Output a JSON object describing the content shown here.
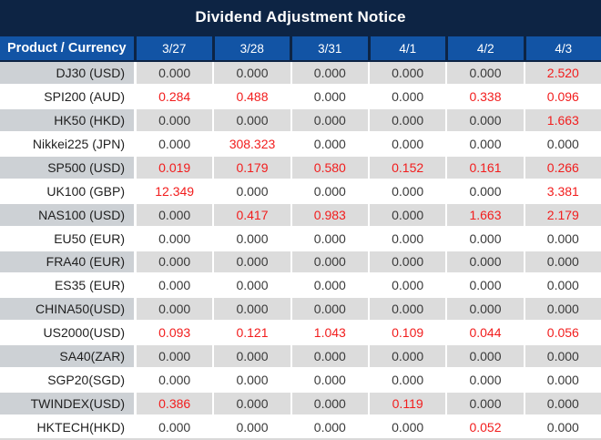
{
  "title": "Dividend Adjustment Notice",
  "colors": {
    "title_bar_bg": "#0d2444",
    "header_bg": "#1254a5",
    "header_text": "#ffffff",
    "row_label_gray": "#cdd1d5",
    "row_value_gray": "#dcdcdc",
    "row_white_bg": "#ffffff",
    "value_text": "#3a3a3a",
    "highlight_red": "#f21d1d"
  },
  "table": {
    "header": [
      "Product / Currency",
      "3/27",
      "3/28",
      "3/31",
      "4/1",
      "4/2",
      "4/3"
    ],
    "rows": [
      {
        "product": "DJ30 (USD)",
        "values": [
          "0.000",
          "0.000",
          "0.000",
          "0.000",
          "0.000",
          "2.520"
        ],
        "red": [
          false,
          false,
          false,
          false,
          false,
          true
        ]
      },
      {
        "product": "SPI200 (AUD)",
        "values": [
          "0.284",
          "0.488",
          "0.000",
          "0.000",
          "0.338",
          "0.096"
        ],
        "red": [
          true,
          true,
          false,
          false,
          true,
          true
        ]
      },
      {
        "product": "HK50 (HKD)",
        "values": [
          "0.000",
          "0.000",
          "0.000",
          "0.000",
          "0.000",
          "1.663"
        ],
        "red": [
          false,
          false,
          false,
          false,
          false,
          true
        ]
      },
      {
        "product": "Nikkei225 (JPN)",
        "values": [
          "0.000",
          "308.323",
          "0.000",
          "0.000",
          "0.000",
          "0.000"
        ],
        "red": [
          false,
          true,
          false,
          false,
          false,
          false
        ]
      },
      {
        "product": "SP500 (USD)",
        "values": [
          "0.019",
          "0.179",
          "0.580",
          "0.152",
          "0.161",
          "0.266"
        ],
        "red": [
          true,
          true,
          true,
          true,
          true,
          true
        ]
      },
      {
        "product": "UK100 (GBP)",
        "values": [
          "12.349",
          "0.000",
          "0.000",
          "0.000",
          "0.000",
          "3.381"
        ],
        "red": [
          true,
          false,
          false,
          false,
          false,
          true
        ]
      },
      {
        "product": "NAS100 (USD)",
        "values": [
          "0.000",
          "0.417",
          "0.983",
          "0.000",
          "1.663",
          "2.179"
        ],
        "red": [
          false,
          true,
          true,
          false,
          true,
          true
        ]
      },
      {
        "product": "EU50 (EUR)",
        "values": [
          "0.000",
          "0.000",
          "0.000",
          "0.000",
          "0.000",
          "0.000"
        ],
        "red": [
          false,
          false,
          false,
          false,
          false,
          false
        ]
      },
      {
        "product": "FRA40 (EUR)",
        "values": [
          "0.000",
          "0.000",
          "0.000",
          "0.000",
          "0.000",
          "0.000"
        ],
        "red": [
          false,
          false,
          false,
          false,
          false,
          false
        ]
      },
      {
        "product": "ES35 (EUR)",
        "values": [
          "0.000",
          "0.000",
          "0.000",
          "0.000",
          "0.000",
          "0.000"
        ],
        "red": [
          false,
          false,
          false,
          false,
          false,
          false
        ]
      },
      {
        "product": "CHINA50(USD)",
        "values": [
          "0.000",
          "0.000",
          "0.000",
          "0.000",
          "0.000",
          "0.000"
        ],
        "red": [
          false,
          false,
          false,
          false,
          false,
          false
        ]
      },
      {
        "product": "US2000(USD)",
        "values": [
          "0.093",
          "0.121",
          "1.043",
          "0.109",
          "0.044",
          "0.056"
        ],
        "red": [
          true,
          true,
          true,
          true,
          true,
          true
        ]
      },
      {
        "product": "SA40(ZAR)",
        "values": [
          "0.000",
          "0.000",
          "0.000",
          "0.000",
          "0.000",
          "0.000"
        ],
        "red": [
          false,
          false,
          false,
          false,
          false,
          false
        ]
      },
      {
        "product": "SGP20(SGD)",
        "values": [
          "0.000",
          "0.000",
          "0.000",
          "0.000",
          "0.000",
          "0.000"
        ],
        "red": [
          false,
          false,
          false,
          false,
          false,
          false
        ]
      },
      {
        "product": "TWINDEX(USD)",
        "values": [
          "0.386",
          "0.000",
          "0.000",
          "0.119",
          "0.000",
          "0.000"
        ],
        "red": [
          true,
          false,
          false,
          true,
          false,
          false
        ]
      },
      {
        "product": "HKTECH(HKD)",
        "values": [
          "0.000",
          "0.000",
          "0.000",
          "0.000",
          "0.052",
          "0.000"
        ],
        "red": [
          false,
          false,
          false,
          false,
          true,
          false
        ]
      }
    ]
  }
}
